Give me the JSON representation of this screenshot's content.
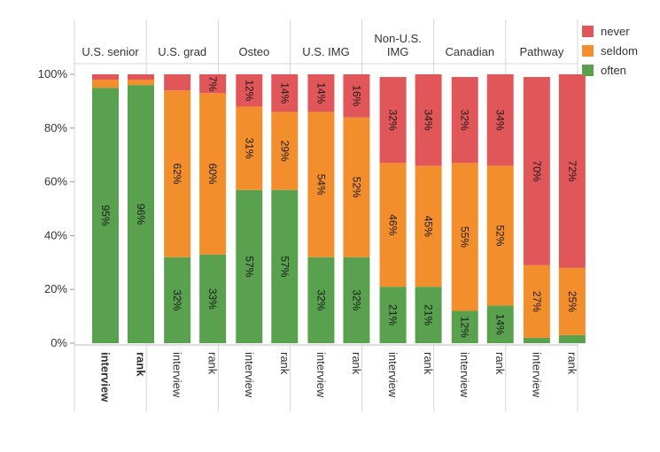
{
  "chart_data": {
    "type": "bar",
    "stacked": true,
    "ylim": [
      0,
      100
    ],
    "y_ticks": [
      "0%",
      "20%",
      "40%",
      "60%",
      "80%",
      "100%"
    ],
    "groups": [
      {
        "label": "U.S. senior",
        "categories": [
          "interview",
          "rank"
        ],
        "bold_categories": true
      },
      {
        "label": "U.S. grad",
        "categories": [
          "interview",
          "rank"
        ]
      },
      {
        "label": "Osteo",
        "categories": [
          "interview",
          "rank"
        ]
      },
      {
        "label": "U.S. IMG",
        "categories": [
          "interview",
          "rank"
        ]
      },
      {
        "label": "Non-U.S.\nIMG",
        "categories": [
          "interview",
          "rank"
        ]
      },
      {
        "label": "Canadian",
        "categories": [
          "interview",
          "rank"
        ]
      },
      {
        "label": "Pathway",
        "categories": [
          "interview",
          "rank"
        ]
      }
    ],
    "series": [
      {
        "name": "often",
        "color": "#59a14f",
        "values": [
          95,
          96,
          32,
          33,
          57,
          57,
          32,
          32,
          21,
          21,
          12,
          14,
          2,
          3
        ],
        "labels": [
          "95%",
          "96%",
          "32%",
          "33%",
          "57%",
          "57%",
          "32%",
          "32%",
          "21%",
          "21%",
          "12%",
          "14%",
          "",
          ""
        ]
      },
      {
        "name": "seldom",
        "color": "#f28e2b",
        "values": [
          3,
          2,
          62,
          60,
          31,
          29,
          54,
          52,
          46,
          45,
          55,
          52,
          27,
          25
        ],
        "labels": [
          "",
          "",
          "62%",
          "60%",
          "31%",
          "29%",
          "54%",
          "52%",
          "46%",
          "45%",
          "55%",
          "52%",
          "27%",
          "25%"
        ]
      },
      {
        "name": "never",
        "color": "#e15759",
        "values": [
          2,
          2,
          6,
          7,
          12,
          14,
          14,
          16,
          32,
          34,
          32,
          34,
          70,
          72
        ],
        "labels": [
          "",
          "",
          "",
          "7%",
          "12%",
          "14%",
          "14%",
          "16%",
          "32%",
          "34%",
          "32%",
          "34%",
          "70%",
          "72%"
        ]
      }
    ],
    "legend_position": "top-right",
    "grid": false
  }
}
